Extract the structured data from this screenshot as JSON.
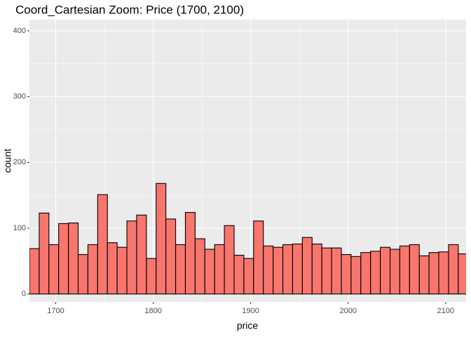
{
  "chart_data": {
    "type": "histogram",
    "title": "Coord_Cartesian Zoom: Price (1700, 2100)",
    "x_label": "price",
    "y_label": "count",
    "bins": [
      1673,
      1683,
      1693,
      1703,
      1713,
      1723,
      1733,
      1743,
      1753,
      1763,
      1773,
      1783,
      1793,
      1803,
      1813,
      1823,
      1833,
      1843,
      1853,
      1863,
      1873,
      1883,
      1893,
      1903,
      1913,
      1923,
      1933,
      1943,
      1953,
      1963,
      1973,
      1983,
      1993,
      2003,
      2013,
      2023,
      2033,
      2043,
      2053,
      2063,
      2073,
      2083,
      2093,
      2103,
      2113,
      2123
    ],
    "values": [
      69,
      123,
      75,
      107,
      108,
      60,
      75,
      151,
      78,
      71,
      111,
      120,
      54,
      168,
      114,
      75,
      124,
      84,
      68,
      75,
      104,
      59,
      54,
      111,
      73,
      71,
      75,
      76,
      86,
      76,
      70,
      70,
      60,
      57,
      63,
      65,
      71,
      68,
      73,
      75,
      58,
      63,
      64,
      75,
      61
    ],
    "color": "#f8766d",
    "edge_color": "#000000",
    "xlim": [
      1673,
      2121
    ],
    "ylim": [
      -12,
      417
    ],
    "xticks": [
      1700,
      1800,
      1900,
      2000,
      2100
    ],
    "yticks": [
      0,
      100,
      200,
      300,
      400
    ],
    "grid": true
  }
}
